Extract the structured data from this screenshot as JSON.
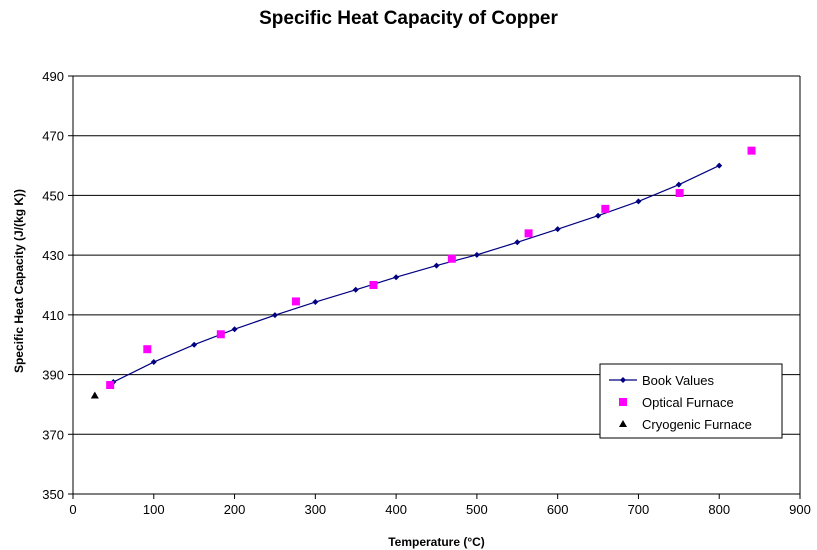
{
  "chart_data": {
    "type": "scatter",
    "title": "Specific Heat Capacity of Copper",
    "xlabel": "Temperature (°C)",
    "ylabel": "Specific Heat Capacity (J/(kg K))",
    "xlim": [
      0,
      900
    ],
    "ylim": [
      350,
      490
    ],
    "xticks": [
      0,
      100,
      200,
      300,
      400,
      500,
      600,
      700,
      800,
      900
    ],
    "yticks": [
      350,
      370,
      390,
      410,
      430,
      450,
      470,
      490
    ],
    "grid": "horizontal major gridlines",
    "legend_position": "bottom-right",
    "series": [
      {
        "name": "Book Values",
        "style": "line-with-diamond-markers",
        "color": "#000080",
        "x": [
          50,
          100,
          150,
          200,
          250,
          300,
          350,
          400,
          450,
          500,
          550,
          600,
          650,
          700,
          750,
          800
        ],
        "y": [
          387.5,
          394.2,
          400.0,
          405.2,
          409.9,
          414.3,
          418.4,
          422.6,
          426.5,
          430.1,
          434.3,
          438.7,
          443.2,
          448.0,
          453.6,
          460.0
        ]
      },
      {
        "name": "Optical Furnace",
        "style": "square-markers",
        "color": "#FF00FF",
        "x": [
          46,
          92,
          183,
          276,
          372,
          469,
          564,
          659,
          751,
          840
        ],
        "y": [
          386.5,
          398.5,
          403.5,
          414.5,
          420.0,
          428.8,
          437.3,
          445.5,
          450.8,
          465.0
        ]
      },
      {
        "name": "Cryogenic Furnace",
        "style": "triangle-markers",
        "color": "#000000",
        "x": [
          27
        ],
        "y": [
          383.0
        ]
      }
    ]
  }
}
